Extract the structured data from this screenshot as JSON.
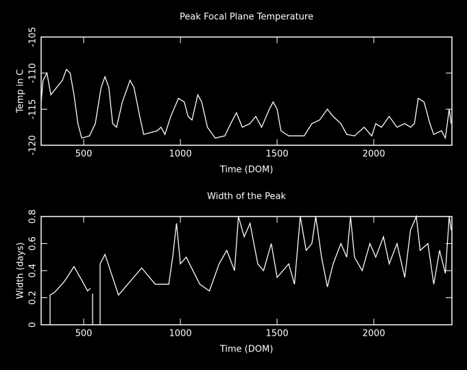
{
  "chart_data": [
    {
      "type": "line",
      "title": "Peak Focal Plane Temperature",
      "xlabel": "Time (DOM)",
      "ylabel": "Temp in C",
      "xlim": [
        280,
        2404
      ],
      "xticks": [
        500,
        1000,
        1500,
        2000
      ],
      "ylim": [
        -120,
        -105
      ],
      "yticks": [
        -120,
        -115,
        -110,
        -105
      ],
      "series": [
        {
          "color": "#ffffff",
          "x": [
            280,
            290,
            310,
            330,
            360,
            390,
            410,
            430,
            450,
            470,
            490,
            530,
            560,
            590,
            610,
            630,
            650,
            670,
            700,
            740,
            760,
            790,
            810,
            880,
            900,
            920,
            950,
            990,
            1020,
            1040,
            1060,
            1090,
            1110,
            1140,
            1180,
            1230,
            1260,
            1290,
            1320,
            1360,
            1390,
            1420,
            1460,
            1480,
            1500,
            1520,
            1560,
            1640,
            1680,
            1720,
            1760,
            1790,
            1830,
            1860,
            1900,
            1950,
            1990,
            2010,
            2040,
            2080,
            2120,
            2160,
            2190,
            2210,
            2230,
            2260,
            2290,
            2310,
            2350,
            2370,
            2390,
            2400
          ],
          "values": [
            -114,
            -111,
            -110,
            -113,
            -112,
            -111,
            -109.5,
            -110,
            -113,
            -117,
            -119,
            -118.7,
            -117,
            -112,
            -110.5,
            -112,
            -117,
            -117.5,
            -114,
            -111,
            -112,
            -116,
            -118.5,
            -118,
            -117.5,
            -118.5,
            -116,
            -113.5,
            -114,
            -116,
            -116.5,
            -113,
            -114,
            -117.5,
            -119,
            -118.7,
            -117,
            -115.5,
            -117.5,
            -117,
            -116,
            -117.5,
            -115,
            -114,
            -115,
            -118,
            -118.7,
            -118.7,
            -117,
            -116.5,
            -115,
            -116,
            -117,
            -118.5,
            -118.7,
            -117.5,
            -118.7,
            -117,
            -117.5,
            -116,
            -117.5,
            -117,
            -117.5,
            -117,
            -113.5,
            -114,
            -117,
            -118.5,
            -118,
            -119,
            -115,
            -117
          ]
        }
      ]
    },
    {
      "type": "line",
      "title": "Width of the Peak",
      "xlabel": "Time (DOM)",
      "ylabel": "Width (days)",
      "xlim": [
        280,
        2404
      ],
      "xticks": [
        500,
        1000,
        1500,
        2000
      ],
      "ylim": [
        0,
        0.8
      ],
      "yticks": [
        0,
        0.2,
        0.4,
        0.6,
        0.8
      ],
      "series": [
        {
          "color": "#ffffff",
          "x": [
            326,
            326,
            350,
            400,
            450,
            490,
            520,
            535,
            540,
            546,
            546,
            560,
            585,
            585,
            610,
            680,
            800,
            870,
            940,
            960,
            980,
            1000,
            1030,
            1100,
            1150,
            1200,
            1240,
            1280,
            1300,
            1330,
            1360,
            1400,
            1430,
            1470,
            1500,
            1560,
            1590,
            1620,
            1650,
            1680,
            1700,
            1730,
            1760,
            1790,
            1830,
            1860,
            1880,
            1900,
            1940,
            1980,
            2010,
            2050,
            2080,
            2120,
            2160,
            2190,
            2220,
            2240,
            2280,
            2310,
            2340,
            2370,
            2390,
            2400
          ],
          "values": [
            0,
            0.22,
            0.24,
            0.32,
            0.43,
            0.33,
            0.25,
            0.27,
            null,
            0,
            0.23,
            null,
            0,
            0.45,
            0.52,
            0.22,
            0.42,
            0.3,
            0.3,
            0.5,
            0.75,
            0.45,
            0.5,
            0.3,
            0.25,
            0.45,
            0.55,
            0.4,
            0.8,
            0.65,
            0.75,
            0.45,
            0.4,
            0.6,
            0.35,
            0.45,
            0.3,
            0.8,
            0.55,
            0.6,
            0.8,
            0.5,
            0.28,
            0.45,
            0.6,
            0.5,
            0.8,
            0.5,
            0.4,
            0.6,
            0.5,
            0.65,
            0.45,
            0.6,
            0.35,
            0.7,
            0.8,
            0.55,
            0.6,
            0.3,
            0.55,
            0.38,
            0.8,
            0.7
          ]
        }
      ]
    }
  ]
}
